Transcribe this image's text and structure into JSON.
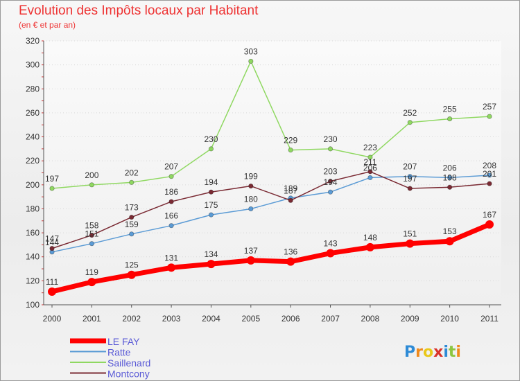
{
  "chart_data": {
    "type": "line",
    "title": "Evolution des Impôts locaux par Habitant",
    "subtitle": "(en € et par an)",
    "xlabel": "",
    "ylabel": "",
    "x": [
      "2000",
      "2001",
      "2002",
      "2003",
      "2004",
      "2005",
      "2006",
      "2007",
      "2008",
      "2009",
      "2010",
      "2011"
    ],
    "ylim": [
      100,
      320
    ],
    "yticks": [
      100,
      120,
      140,
      160,
      180,
      200,
      220,
      240,
      260,
      280,
      300,
      320
    ],
    "series": [
      {
        "name": "LE FAY",
        "color": "#ff0000",
        "values": [
          111,
          119,
          125,
          131,
          134,
          137,
          136,
          143,
          148,
          151,
          153,
          167
        ]
      },
      {
        "name": "Ratte",
        "color": "#5b9bd5",
        "values": [
          144,
          151,
          159,
          166,
          175,
          180,
          189,
          194,
          206,
          207,
          206,
          208
        ]
      },
      {
        "name": "Saillenard",
        "color": "#8fd861",
        "values": [
          197,
          200,
          202,
          207,
          230,
          303,
          229,
          230,
          223,
          252,
          255,
          257
        ]
      },
      {
        "name": "Montcony",
        "color": "#7a2a33",
        "values": [
          147,
          158,
          173,
          186,
          194,
          199,
          187,
          203,
          211,
          197,
          198,
          201
        ]
      }
    ],
    "legend_position": "bottom-left"
  },
  "logo": {
    "text": "Proxiti"
  }
}
